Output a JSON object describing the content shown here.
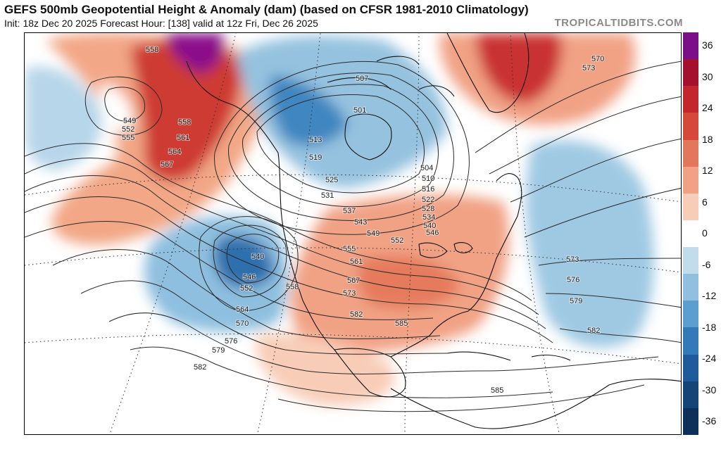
{
  "header": {
    "title": "GEFS 500mb Geopotential Height & Anomaly (dam) (based on CFSR 1981-2010 Climatology)",
    "subtitle": "Init: 18z Dec 20 2025   Forecast Hour: [138]   valid at 12z Fri, Dec 26 2025",
    "watermark": "TROPICALTIDBITS.COM"
  },
  "colors": {
    "strong_positive": "#8b0a8a",
    "positive": "#c1272d",
    "weak_positive": "#f6c5ad",
    "neutral": "#ffffff",
    "weak_negative": "#b6d7e8",
    "negative": "#2f78b7",
    "strong_negative": "#0d2f5b",
    "contour": "#2b2b2b",
    "coastline": "#111111"
  },
  "colorbar": {
    "ticks": [
      "36",
      "30",
      "24",
      "18",
      "12",
      "6",
      "0",
      "-6",
      "-12",
      "-18",
      "-24",
      "-30",
      "-36"
    ],
    "colors": [
      "#7b0f88",
      "#a5102e",
      "#c1272d",
      "#d5483a",
      "#e3775c",
      "#f1a285",
      "#f8cdb8",
      "#ffffff",
      "#c3dcec",
      "#90bfdf",
      "#5b9ecf",
      "#3479b8",
      "#1f5a9a",
      "#154479",
      "#0d2f5b"
    ]
  },
  "contour_labels": [
    "558",
    "549",
    "552",
    "555",
    "558",
    "561",
    "564",
    "567",
    "501",
    "507",
    "513",
    "519",
    "525",
    "531",
    "537",
    "543",
    "549",
    "555",
    "561",
    "567",
    "573",
    "504",
    "510",
    "516",
    "522",
    "528",
    "534",
    "540",
    "546",
    "552",
    "540",
    "546",
    "552",
    "558",
    "564",
    "570",
    "576",
    "579",
    "582",
    "582",
    "585",
    "585",
    "570",
    "573",
    "573",
    "576",
    "579",
    "582"
  ]
}
